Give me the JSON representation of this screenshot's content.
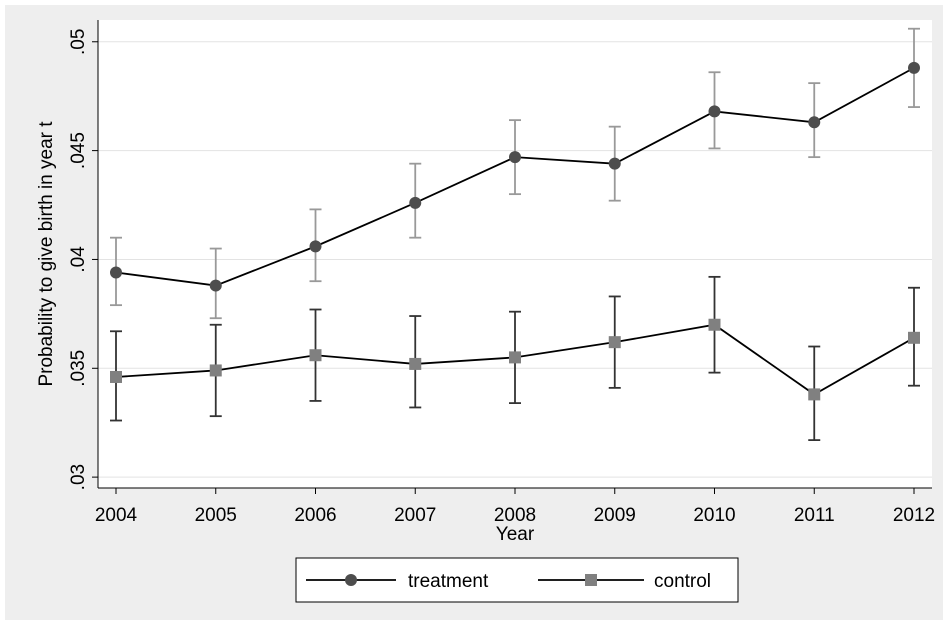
{
  "chart_data": {
    "type": "line",
    "title": "",
    "xlabel": "Year",
    "ylabel": "Probability to give birth in year t",
    "x": [
      2004,
      2005,
      2006,
      2007,
      2008,
      2009,
      2010,
      2011,
      2012
    ],
    "x_tick_labels": [
      "2004",
      "2005",
      "2006",
      "2007",
      "2008",
      "2009",
      "2010",
      "2011",
      "2012"
    ],
    "ylim": [
      0.0295,
      0.051
    ],
    "y_ticks": [
      0.03,
      0.035,
      0.04,
      0.045,
      0.05
    ],
    "y_tick_labels": [
      ".03",
      ".035",
      ".04",
      ".045",
      ".05"
    ],
    "grid": true,
    "legend_position": "bottom",
    "series": [
      {
        "name": "treatment",
        "marker": "circle",
        "line_color": "#000000",
        "marker_color": "#4d4d4d",
        "errorbar_color": "#999999",
        "values": [
          0.0394,
          0.0388,
          0.0406,
          0.0426,
          0.0447,
          0.0444,
          0.0468,
          0.0463,
          0.0488
        ],
        "lower": [
          0.0379,
          0.0373,
          0.039,
          0.041,
          0.043,
          0.0427,
          0.0451,
          0.0447,
          0.047
        ],
        "upper": [
          0.041,
          0.0405,
          0.0423,
          0.0444,
          0.0464,
          0.0461,
          0.0486,
          0.0481,
          0.0506
        ]
      },
      {
        "name": "control",
        "marker": "square",
        "line_color": "#000000",
        "marker_color": "#808080",
        "errorbar_color": "#333333",
        "values": [
          0.0346,
          0.0349,
          0.0356,
          0.0352,
          0.0355,
          0.0362,
          0.037,
          0.0338,
          0.0364
        ],
        "lower": [
          0.0326,
          0.0328,
          0.0335,
          0.0332,
          0.0334,
          0.0341,
          0.0348,
          0.0317,
          0.0342
        ],
        "upper": [
          0.0367,
          0.037,
          0.0377,
          0.0374,
          0.0376,
          0.0383,
          0.0392,
          0.036,
          0.0387
        ]
      }
    ]
  }
}
